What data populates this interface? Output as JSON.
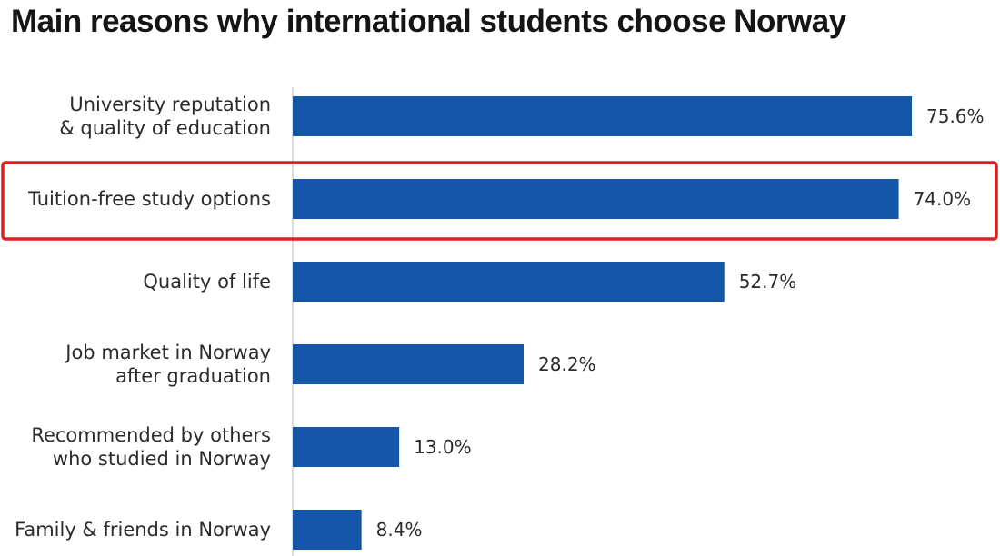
{
  "chart_data": {
    "type": "bar",
    "orientation": "horizontal",
    "title": "Main reasons why international students choose Norway",
    "categories": [
      [
        "University reputation",
        "& quality of education"
      ],
      [
        "Tuition-free study options"
      ],
      [
        "Quality of life"
      ],
      [
        "Job market in Norway",
        "after graduation"
      ],
      [
        "Recommended by others",
        "who studied in Norway"
      ],
      [
        "Family & friends in Norway"
      ]
    ],
    "values": [
      75.6,
      74.0,
      52.7,
      28.2,
      13.0,
      8.4
    ],
    "value_labels": [
      "75.6%",
      "74.0%",
      "52.7%",
      "28.2%",
      "13.0%",
      "8.4%"
    ],
    "xlim": [
      0,
      75.6
    ],
    "bar_color": "#1456a8",
    "highlight_index": 1,
    "highlight_color": "#e02020",
    "grid": false,
    "legend": "none"
  }
}
